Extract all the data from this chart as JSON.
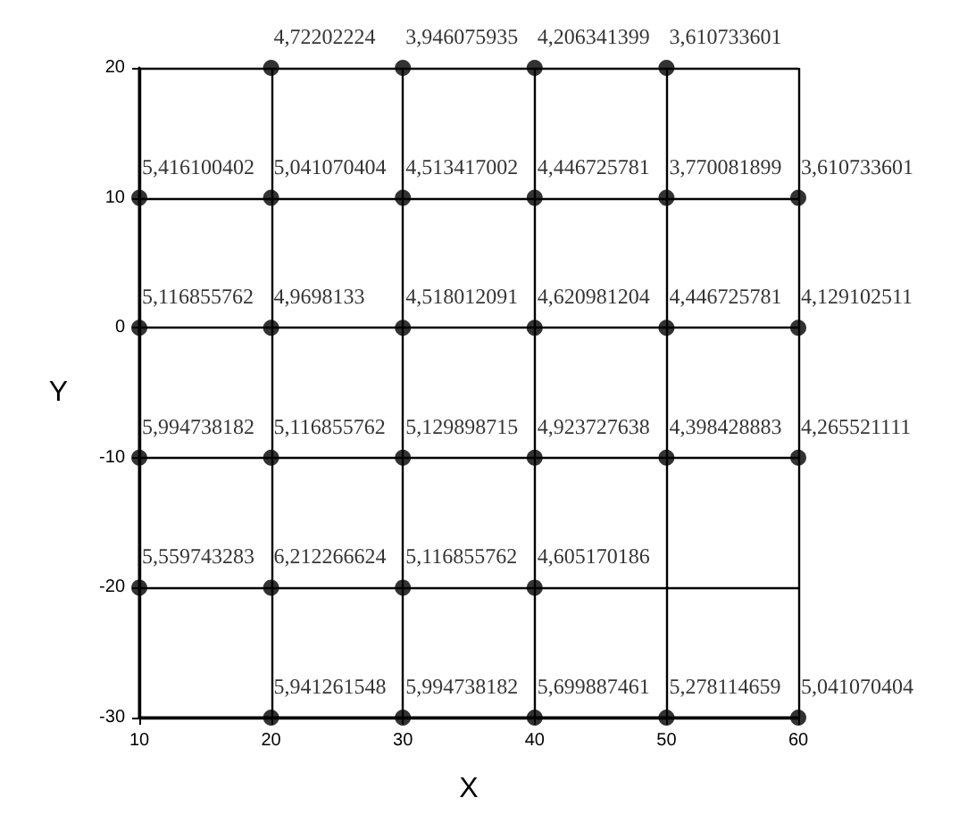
{
  "chart_data": {
    "type": "scatter",
    "xlabel": "X",
    "ylabel": "Y",
    "xlim": [
      10,
      60
    ],
    "ylim": [
      -30,
      20
    ],
    "xticks": [
      10,
      20,
      30,
      40,
      50,
      60
    ],
    "yticks": [
      -30,
      -20,
      -10,
      0,
      10,
      20
    ],
    "grid": true,
    "marker": "circle",
    "series": [
      {
        "color": "#000000",
        "x": [
          20,
          30,
          40,
          50,
          10,
          20,
          30,
          40,
          50,
          60,
          10,
          20,
          30,
          40,
          50,
          60,
          10,
          20,
          30,
          40,
          50,
          60,
          10,
          20,
          30,
          40,
          20,
          30,
          40,
          50,
          60
        ],
        "values": [
          20,
          20,
          20,
          20,
          10,
          10,
          10,
          10,
          10,
          10,
          0,
          0,
          0,
          0,
          0,
          0,
          -10,
          -10,
          -10,
          -10,
          -10,
          -10,
          -20,
          -20,
          -20,
          -20,
          -30,
          -30,
          -30,
          -30,
          -30
        ],
        "value_labels": [
          "4,72202224",
          "3,946075935",
          "4,206341399",
          "3,610733601",
          "5,416100402",
          "5,041070404",
          "4,513417002",
          "4,446725781",
          "3,770081899",
          "3,610733601",
          "5,116855762",
          "4,9698133",
          "4,518012091",
          "4,620981204",
          "4,446725781",
          "4,129102511",
          "5,994738182",
          "5,116855762",
          "5,129898715",
          "4,923727638",
          "4,398428883",
          "4,265521111",
          "5,559743283",
          "6,212266624",
          "5,116855762",
          "4,605170186",
          "5,941261548",
          "5,994738182",
          "5,699887461",
          "5,278114659",
          "5,041070404"
        ]
      }
    ]
  }
}
